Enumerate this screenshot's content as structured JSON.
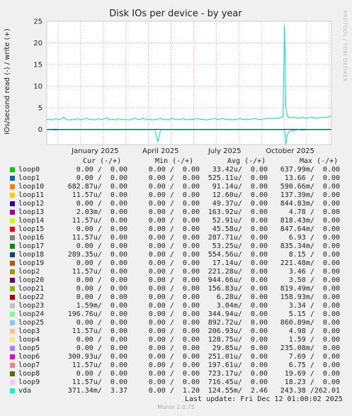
{
  "chart_data": {
    "type": "line",
    "title": "Disk IOs per device - by year",
    "ylabel": "IOs/second read (-) / write (+)",
    "ylim": [
      -3.5,
      25
    ],
    "yticks": [
      0,
      5,
      10,
      15,
      20,
      25
    ],
    "xticks": [
      "January 2025",
      "April 2025",
      "July 2025",
      "October 2025"
    ],
    "grid": true,
    "brand": "RRDTOOL / TOBI OETIKER",
    "series": [
      {
        "name": "vda",
        "color": "#00e0c0",
        "x": [
          0.0,
          0.01,
          0.02,
          0.03,
          0.04,
          0.05,
          0.06,
          0.07,
          0.08,
          0.09,
          0.1,
          0.11,
          0.12,
          0.13,
          0.14,
          0.15,
          0.16,
          0.17,
          0.18,
          0.19,
          0.2,
          0.21,
          0.22,
          0.23,
          0.24,
          0.25,
          0.26,
          0.27,
          0.28,
          0.29,
          0.3,
          0.31,
          0.32,
          0.33,
          0.34,
          0.35,
          0.36,
          0.37,
          0.38,
          0.39,
          0.4,
          0.41,
          0.42,
          0.43,
          0.44,
          0.45,
          0.46,
          0.47,
          0.48,
          0.49,
          0.5,
          0.51,
          0.52,
          0.53,
          0.54,
          0.55,
          0.56,
          0.57,
          0.58,
          0.59,
          0.6,
          0.61,
          0.62,
          0.63,
          0.64,
          0.65,
          0.66,
          0.67,
          0.68,
          0.69,
          0.7,
          0.71,
          0.72,
          0.73,
          0.74,
          0.75,
          0.76,
          0.77,
          0.78,
          0.79,
          0.8,
          0.81,
          0.82,
          0.83,
          0.835,
          0.84,
          0.845,
          0.85,
          0.86,
          0.87,
          0.88,
          0.89,
          0.9,
          0.91,
          0.92,
          0.93,
          0.94,
          0.95,
          0.96,
          0.97,
          0.98,
          0.99,
          1.0
        ],
        "write": [
          2.3,
          2.4,
          2.2,
          2.5,
          2.3,
          2.4,
          2.8,
          2.3,
          2.2,
          2.4,
          2.3,
          2.5,
          2.2,
          2.4,
          2.6,
          2.3,
          2.4,
          2.2,
          2.5,
          2.3,
          2.4,
          2.7,
          2.3,
          2.4,
          2.2,
          2.5,
          2.3,
          2.4,
          2.3,
          2.2,
          2.4,
          2.6,
          2.3,
          2.4,
          2.5,
          2.3,
          2.4,
          2.2,
          2.3,
          2.4,
          2.5,
          2.3,
          2.4,
          2.2,
          2.6,
          2.3,
          2.4,
          2.3,
          2.5,
          2.2,
          2.4,
          2.3,
          2.4,
          2.5,
          2.3,
          2.4,
          2.2,
          2.3,
          2.4,
          2.6,
          2.3,
          2.4,
          2.5,
          2.3,
          2.4,
          2.2,
          2.3,
          2.4,
          2.5,
          2.3,
          2.4,
          2.3,
          2.4,
          2.5,
          2.4,
          2.3,
          2.4,
          2.5,
          2.6,
          2.5,
          2.6,
          2.5,
          2.7,
          3.0,
          24.0,
          5.0,
          3.2,
          2.8,
          2.7,
          2.8,
          2.6,
          2.7,
          2.8,
          2.6,
          2.7,
          2.8,
          2.7,
          2.6,
          2.8,
          2.7,
          2.8,
          2.9,
          3.1
        ],
        "read": [
          -0.1,
          -0.1,
          -0.1,
          -0.2,
          -0.1,
          -0.1,
          -0.1,
          -0.1,
          -0.1,
          -0.1,
          -0.1,
          -0.1,
          -0.1,
          -0.1,
          -0.1,
          -0.1,
          -0.1,
          -0.1,
          -0.1,
          -0.1,
          -0.1,
          -0.1,
          -0.1,
          -0.1,
          -0.1,
          -0.1,
          -0.1,
          -0.1,
          -0.1,
          -0.1,
          -0.1,
          -0.1,
          -0.1,
          -0.1,
          -0.1,
          -0.1,
          -0.1,
          -0.1,
          -0.1,
          -2.8,
          -0.1,
          -0.1,
          -0.1,
          -0.1,
          -0.1,
          -0.1,
          -0.1,
          -0.1,
          -0.1,
          -0.1,
          -0.1,
          -0.1,
          -0.1,
          -0.1,
          -0.1,
          -0.1,
          -0.1,
          -0.1,
          -0.1,
          -0.1,
          -0.1,
          -0.1,
          -0.1,
          -0.1,
          -0.1,
          -0.1,
          -0.1,
          -0.1,
          -0.1,
          -0.1,
          -0.1,
          -0.1,
          -0.1,
          -0.1,
          -0.1,
          -0.1,
          -0.1,
          -0.1,
          -0.1,
          -0.1,
          -0.1,
          -0.1,
          -0.1,
          -0.1,
          -0.1,
          -3.5,
          -1.2,
          -0.6,
          -0.2,
          -0.3,
          -0.1,
          -0.1,
          -0.2,
          -0.1,
          -0.1,
          -0.1,
          -0.1,
          -0.1,
          -0.1,
          -0.1,
          -0.1,
          -0.1,
          -0.1
        ]
      }
    ]
  },
  "table": {
    "headers": {
      "cur": "Cur (-/+)",
      "min": "Min (-/+)",
      "avg": "Avg (-/+)",
      "max": "Max (-/+)"
    },
    "rows": [
      {
        "name": "loop0",
        "color": "#00cc00",
        "cur": "0.00 /  0.00",
        "min": "0.00 /  0.00",
        "avg": "33.42u/  0.00",
        "max": "637.99m/  0.00"
      },
      {
        "name": "loop1",
        "color": "#0066b3",
        "cur": "0.00 /  0.00",
        "min": "0.00 /  0.00",
        "avg": "525.11u/  0.00",
        "max": "13.66 /  0.00"
      },
      {
        "name": "loop10",
        "color": "#ff8000",
        "cur": "682.87u/  0.00",
        "min": "0.00 /  0.00",
        "avg": "91.14u/  0.00",
        "max": "590.66m/  0.00"
      },
      {
        "name": "loop11",
        "color": "#ffcc00",
        "cur": "11.57u/  0.00",
        "min": "0.00 /  0.00",
        "avg": "12.60u/  0.00",
        "max": "137.39m/  0.00"
      },
      {
        "name": "loop12",
        "color": "#330099",
        "cur": "0.00 /  0.00",
        "min": "0.00 /  0.00",
        "avg": "49.37u/  0.00",
        "max": "844.83m/  0.00"
      },
      {
        "name": "loop13",
        "color": "#990099",
        "cur": "2.03m/  0.00",
        "min": "0.00 /  0.00",
        "avg": "163.92u/  0.00",
        "max": "4.78 /  0.00"
      },
      {
        "name": "loop14",
        "color": "#ccff00",
        "cur": "11.57u/  0.00",
        "min": "0.00 /  0.00",
        "avg": "52.91u/  0.00",
        "max": "818.43m/  0.00"
      },
      {
        "name": "loop15",
        "color": "#ff0000",
        "cur": "0.00 /  0.00",
        "min": "0.00 /  0.00",
        "avg": "45.58u/  0.00",
        "max": "847.64m/  0.00"
      },
      {
        "name": "loop16",
        "color": "#808080",
        "cur": "11.57u/  0.00",
        "min": "0.00 /  0.00",
        "avg": "287.71u/  0.00",
        "max": "6.93 /  0.00"
      },
      {
        "name": "loop17",
        "color": "#008f00",
        "cur": "0.00 /  0.00",
        "min": "0.00 /  0.00",
        "avg": "53.25u/  0.00",
        "max": "835.34m/  0.00"
      },
      {
        "name": "loop18",
        "color": "#00487d",
        "cur": "289.35u/  0.00",
        "min": "0.00 /  0.00",
        "avg": "554.56u/  0.00",
        "max": "8.15 /  0.00"
      },
      {
        "name": "loop19",
        "color": "#b35a00",
        "cur": "0.00 /  0.00",
        "min": "0.00 /  0.00",
        "avg": "17.14u/  0.00",
        "max": "221.48m/  0.00"
      },
      {
        "name": "loop2",
        "color": "#b38f00",
        "cur": "11.57u/  0.00",
        "min": "0.00 /  0.00",
        "avg": "221.28u/  0.00",
        "max": "3.46 /  0.00"
      },
      {
        "name": "loop20",
        "color": "#6b006b",
        "cur": "0.00 /  0.00",
        "min": "0.00 /  0.00",
        "avg": "944.66u/  0.00",
        "max": "3.50 /  0.00"
      },
      {
        "name": "loop21",
        "color": "#8fb300",
        "cur": "0.00 /  0.00",
        "min": "0.00 /  0.00",
        "avg": "156.83u/  0.00",
        "max": "819.49m/  0.00"
      },
      {
        "name": "loop22",
        "color": "#b30000",
        "cur": "0.00 /  0.00",
        "min": "0.00 /  0.00",
        "avg": "6.28u/  0.00",
        "max": "158.93m/  0.00"
      },
      {
        "name": "loop23",
        "color": "#bebebe",
        "cur": "1.59m/  0.00",
        "min": "0.00 /  0.00",
        "avg": "3.04m/  0.00",
        "max": "3.34 /  0.00"
      },
      {
        "name": "loop24",
        "color": "#80ff80",
        "cur": "196.76u/  0.00",
        "min": "0.00 /  0.00",
        "avg": "344.94u/  0.00",
        "max": "5.15 /  0.00"
      },
      {
        "name": "loop25",
        "color": "#80c9ff",
        "cur": "0.00 /  0.00",
        "min": "0.00 /  0.00",
        "avg": "892.72u/  0.00",
        "max": "860.89m/  0.00"
      },
      {
        "name": "loop3",
        "color": "#ffc080",
        "cur": "11.57u/  0.00",
        "min": "0.00 /  0.00",
        "avg": "206.93u/  0.00",
        "max": "4.98 /  0.00"
      },
      {
        "name": "loop4",
        "color": "#ffe680",
        "cur": "0.00 /  0.00",
        "min": "0.00 /  0.00",
        "avg": "128.75u/  0.00",
        "max": "1.59 /  0.00"
      },
      {
        "name": "loop5",
        "color": "#aa80ff",
        "cur": "0.00 /  0.00",
        "min": "0.00 /  0.00",
        "avg": "29.85u/  0.00",
        "max": "235.08m/  0.00"
      },
      {
        "name": "loop6",
        "color": "#ee00cc",
        "cur": "300.93u/  0.00",
        "min": "0.00 /  0.00",
        "avg": "251.01u/  0.00",
        "max": "7.69 /  0.00"
      },
      {
        "name": "loop7",
        "color": "#ff8080",
        "cur": "11.57u/  0.00",
        "min": "0.00 /  0.00",
        "avg": "197.61u/  0.00",
        "max": "6.75 /  0.00"
      },
      {
        "name": "loop8",
        "color": "#666600",
        "cur": "0.00 /  0.00",
        "min": "0.00 /  0.00",
        "avg": "723.17u/  0.00",
        "max": "19.69 /  0.00"
      },
      {
        "name": "loop9",
        "color": "#ffbfff",
        "cur": "11.57u/  0.00",
        "min": "0.00 /  0.00",
        "avg": "716.45u/  0.00",
        "max": "18.23 /  0.00"
      },
      {
        "name": "vda",
        "color": "#00ffcc",
        "cur": "371.34m/  3.37",
        "min": "0.00 /  1.20",
        "avg": "124.55m/  2.46",
        "max": "243.38 /262.01"
      }
    ]
  },
  "footer": {
    "last_update": "Last update: Fri Dec 12 01:00:02 2025",
    "version": "Munin 2.0.75"
  }
}
